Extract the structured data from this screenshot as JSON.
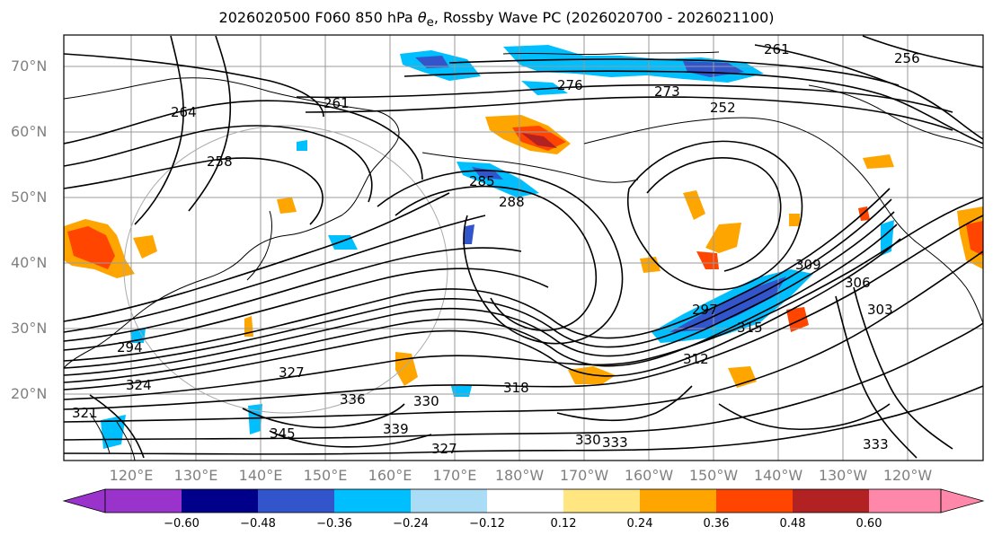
{
  "title_parts": {
    "prefix": "2026020500 F060 850 hPa ",
    "theta": "θ",
    "sub": "e",
    "suffix": ", Rossby Wave PC (2026020700 - 2026021100)"
  },
  "lat_labels": [
    "70°N",
    "60°N",
    "50°N",
    "40°N",
    "30°N",
    "20°N"
  ],
  "lon_labels": [
    "120°E",
    "130°E",
    "140°E",
    "150°E",
    "160°E",
    "170°E",
    "180°W",
    "170°W",
    "160°W",
    "150°W",
    "140°W",
    "130°W",
    "120°W"
  ],
  "colorbar": {
    "colors": [
      "#9933cc",
      "#00008b",
      "#3355cc",
      "#00bfff",
      "#aaddf5",
      "#ffffff",
      "#ffe680",
      "#ffa500",
      "#ff4500",
      "#b22222",
      "#ff88aa"
    ],
    "ticks": [
      "−0.60",
      "−0.48",
      "−0.36",
      "−0.24",
      "−0.12",
      "0.12",
      "0.24",
      "0.36",
      "0.48",
      "0.60"
    ]
  },
  "contour_labels": [
    "261",
    "276",
    "273",
    "252",
    "256",
    "264",
    "258",
    "261",
    "285",
    "288",
    "294",
    "324",
    "309",
    "315",
    "312",
    "318",
    "336",
    "339",
    "345",
    "330",
    "333",
    "306",
    "303",
    "297",
    "327",
    "321",
    "327",
    "330",
    "333"
  ],
  "map_style": {
    "contour_color": "#000000",
    "coast_color": "#000000",
    "grid_color": "#9a9a9a"
  }
}
